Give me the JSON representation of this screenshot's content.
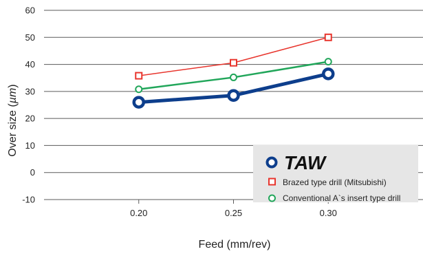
{
  "chart_data": {
    "type": "line",
    "xlabel": "Feed (mm/rev)",
    "ylabel": "Over size (",
    "ylabel_unit": "µm",
    "ylabel_close": ")",
    "x": [
      0.2,
      0.25,
      0.3
    ],
    "x_tick_labels": [
      "0.20",
      "0.25",
      "0.30"
    ],
    "xlim": [
      0.15,
      0.35
    ],
    "ylim": [
      -10,
      60
    ],
    "y_ticks": [
      -10,
      0,
      10,
      20,
      30,
      40,
      50,
      60
    ],
    "grid": "horizontal",
    "legend_position": "bottom-right",
    "series": [
      {
        "name": "TAW",
        "values": [
          26,
          28.5,
          36.5
        ],
        "color": "#0d3e8c",
        "marker": "circle"
      },
      {
        "name": "Brazed type drill (Mitsubishi)",
        "values": [
          35.8,
          40.6,
          50
        ],
        "color": "#e8352d",
        "marker": "square"
      },
      {
        "name": "Conventional A`s insert type drill",
        "values": [
          30.8,
          35.2,
          41
        ],
        "color": "#21a65a",
        "marker": "circle"
      }
    ]
  }
}
